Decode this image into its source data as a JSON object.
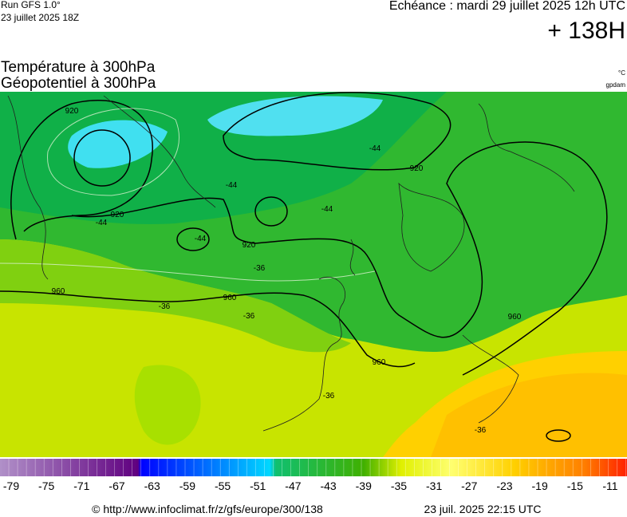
{
  "header": {
    "run": "Run GFS 1.0°",
    "run_date": "23 juillet 2025 18Z",
    "valid": "Echéance : mardi 29 juillet 2025 12h UTC",
    "lead": "+ 138H"
  },
  "title": {
    "line1": "Température à 300hPa",
    "line2": "Géopotentiel à 300hPa",
    "unit1": "°C",
    "unit2": "gpdam"
  },
  "map": {
    "geopotential_labels": [
      "920",
      "920",
      "920",
      "920",
      "960",
      "960",
      "960",
      "960"
    ],
    "temperature_labels": [
      "-44",
      "-44",
      "-44",
      "-44",
      "-44",
      "-36",
      "-36",
      "-36",
      "-36",
      "-36"
    ]
  },
  "colorbar": {
    "labels": [
      -79,
      -75,
      -71,
      -67,
      -63,
      -59,
      -55,
      -51,
      -47,
      -43,
      -39,
      -35,
      -31,
      -27,
      -23,
      -19,
      -15,
      -11
    ]
  },
  "footer": {
    "url": "© http://www.infoclimat.fr/z/gfs/europe/300/138",
    "generated": "23 juil. 2025 22:15 UTC"
  }
}
